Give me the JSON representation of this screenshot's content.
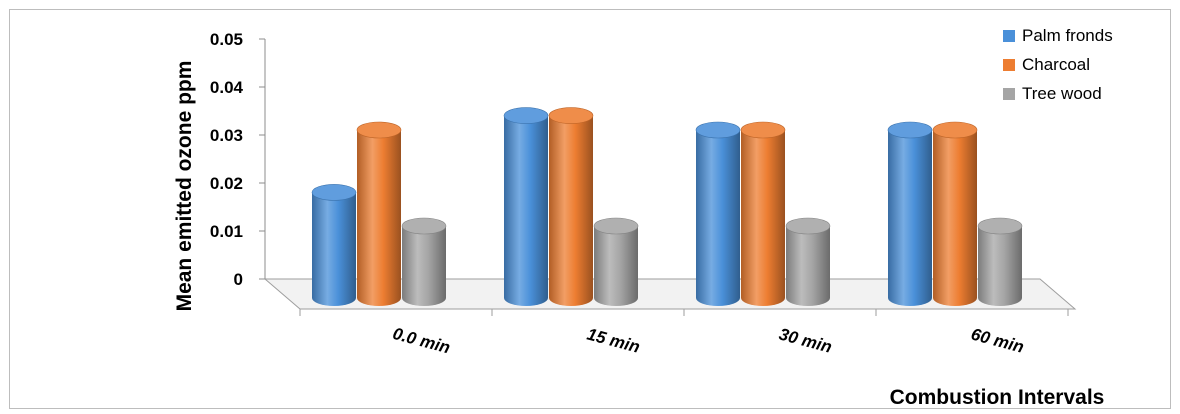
{
  "chart_data": {
    "type": "bar",
    "categories": [
      "0.0 min",
      "15 min",
      "30 min",
      "60 min"
    ],
    "series": [
      {
        "name": "Palm fronds",
        "values": [
          0.022,
          0.038,
          0.035,
          0.035
        ],
        "color": "#4a90d9"
      },
      {
        "name": "Charcoal",
        "values": [
          0.035,
          0.038,
          0.035,
          0.035
        ],
        "color": "#ed7d31"
      },
      {
        "name": "Tree wood",
        "values": [
          0.015,
          0.015,
          0.015,
          0.015
        ],
        "color": "#a5a5a5"
      }
    ],
    "xlabel": "Combustion Intervals",
    "ylabel": "Mean emitted ozone ppm",
    "ylim": [
      0,
      0.05
    ],
    "yticks": [
      "0",
      "0.01",
      "0.02",
      "0.03",
      "0.04",
      "0.05"
    ],
    "grid": false,
    "legend_position": "top-right",
    "style": "3d-cylinder"
  }
}
